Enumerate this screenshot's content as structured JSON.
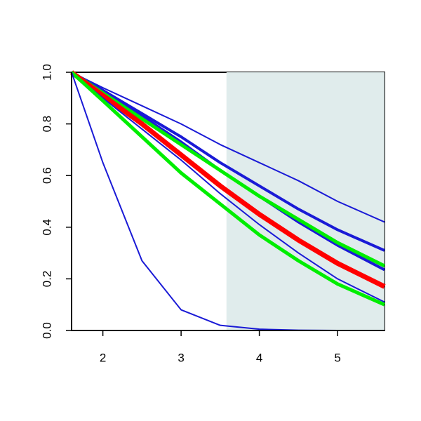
{
  "chart_data": {
    "type": "line",
    "x": [
      1.6,
      2,
      2.25,
      2.5,
      3,
      3.5,
      4,
      4.5,
      5,
      5.6
    ],
    "xlim": [
      1.6,
      5.6
    ],
    "ylim": [
      0,
      1
    ],
    "xticks": [
      2,
      3,
      4,
      5
    ],
    "yticks": [
      {
        "value": 0,
        "label": "0.0"
      },
      {
        "value": 0.2,
        "label": "0.2"
      },
      {
        "value": 0.4,
        "label": "0.4"
      },
      {
        "value": 0.6,
        "label": "0.6"
      },
      {
        "value": 0.8,
        "label": "0.8"
      },
      {
        "value": 1,
        "label": "1.0"
      }
    ],
    "shaded_region": {
      "xmin": 3.58,
      "xmax": 5.6,
      "color": "#e0ecec"
    },
    "series": [
      {
        "color": "#1a1ad6",
        "width": 2,
        "values": [
          1,
          0.94,
          0.905,
          0.87,
          0.8,
          0.72,
          0.65,
          0.58,
          0.5,
          0.42
        ]
      },
      {
        "color": "#1a1ad6",
        "width": 4,
        "values": [
          1,
          0.93,
          0.885,
          0.84,
          0.75,
          0.65,
          0.56,
          0.47,
          0.39,
          0.31
        ]
      },
      {
        "color": "#1a1ad6",
        "width": 4,
        "values": [
          1,
          0.93,
          0.88,
          0.83,
          0.73,
          0.62,
          0.52,
          0.42,
          0.33,
          0.235
        ]
      },
      {
        "color": "#00ee00",
        "width": 5,
        "values": [
          1,
          0.92,
          0.87,
          0.82,
          0.72,
          0.62,
          0.52,
          0.43,
          0.34,
          0.25
        ]
      },
      {
        "color": "#ff0000",
        "width": 7,
        "values": [
          1,
          0.91,
          0.855,
          0.8,
          0.68,
          0.56,
          0.45,
          0.35,
          0.26,
          0.17
        ]
      },
      {
        "color": "#1a1ad6",
        "width": 2,
        "values": [
          1,
          0.9,
          0.84,
          0.78,
          0.66,
          0.53,
          0.41,
          0.3,
          0.2,
          0.11
        ]
      },
      {
        "color": "#00ee00",
        "width": 5,
        "values": [
          1,
          0.89,
          0.82,
          0.75,
          0.61,
          0.49,
          0.37,
          0.27,
          0.18,
          0.1
        ]
      },
      {
        "color": "#1a1ad6",
        "width": 2,
        "values": [
          1,
          0.65,
          0.46,
          0.27,
          0.08,
          0.02,
          0.005,
          0.001,
          0,
          0
        ]
      }
    ]
  }
}
